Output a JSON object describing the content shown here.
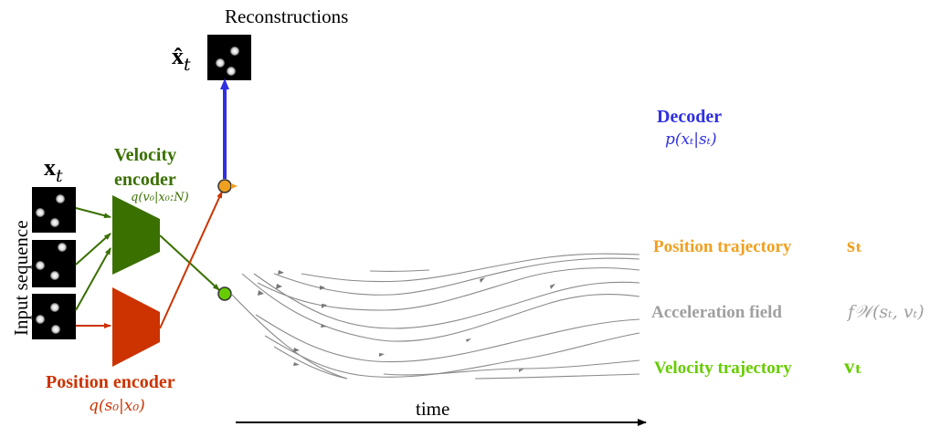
{
  "title": "Reconstructions",
  "xhat_label": "x̂",
  "xhat_sub": "t",
  "x_label": "x",
  "x_sub": "t",
  "input_sequence_label": "Input sequence",
  "velocity_encoder": {
    "line1": "Velocity",
    "line2": "encoder",
    "formula": "q(v₀|x₀:N)",
    "color": "#3a7000"
  },
  "position_encoder": {
    "label": "Position encoder",
    "formula": "q(s₀|x₀)",
    "color": "#cc3300"
  },
  "decoder": {
    "label": "Decoder",
    "formula": "p(xₜ|sₜ)",
    "color": "#3030e0"
  },
  "position_trajectory": {
    "label": "Position trajectory",
    "symbol": "sₜ",
    "color": "#f0a020"
  },
  "acceleration_field": {
    "label": "Acceleration field",
    "symbol": "f𝒲(sₜ, vₜ)",
    "color": "#a0a0a0"
  },
  "velocity_trajectory": {
    "label": "Velocity trajectory",
    "symbol": "vₜ",
    "color": "#66cc00"
  },
  "time_label": "time"
}
